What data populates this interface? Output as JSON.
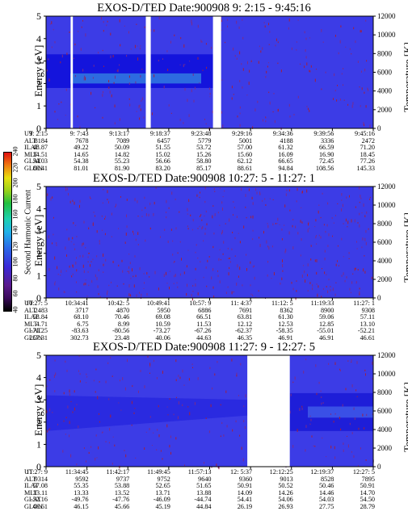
{
  "colorbar": {
    "label": "Second Harmonic Current",
    "ticks": [
      "40",
      "60",
      "80",
      "100",
      "120",
      "140",
      "160",
      "180",
      "200",
      "220",
      "240"
    ]
  },
  "chart_data": [
    {
      "type": "heatmap",
      "title": "EXOS-D/TED   Date:900908  9: 2:15 - 9:45:16",
      "ylabel": "Energy [eV]",
      "y2label": "Temperature [K]",
      "ylim": [
        0,
        5
      ],
      "y2lim": [
        0,
        12000
      ],
      "yticks": [
        "0",
        "1",
        "2",
        "3",
        "4",
        "5"
      ],
      "y2ticks": [
        "0",
        "2000",
        "4000",
        "6000",
        "8000",
        "10000",
        "12000"
      ],
      "data_gaps_index": [
        [
          0.51,
          0.535
        ],
        [
          0.075,
          0.082
        ],
        [
          0.305,
          0.32
        ]
      ],
      "band_energy_eV": [
        1.8,
        3.3
      ],
      "orbit_rows": [
        "UT",
        "ALT",
        "ILAT",
        "MLT",
        "GLAT",
        "GLON"
      ],
      "orbit_columns": [
        [
          "9: 2:15",
          "8184",
          "48.87",
          "14.51",
          "54.03",
          "80.41"
        ],
        [
          "9: 7:43",
          "7678",
          "49.22",
          "14.65",
          "54.38",
          "81.01"
        ],
        [
          "9:13:17",
          "7089",
          "50.09",
          "14.82",
          "55.23",
          "81.90"
        ],
        [
          "9:18:37",
          "6457",
          "51.55",
          "15.02",
          "56.66",
          "83.20"
        ],
        [
          "9:23:48",
          "5779",
          "53.72",
          "15.26",
          "58.80",
          "85.17"
        ],
        [
          "9:29:16",
          "5001",
          "57.00",
          "15.60",
          "62.12",
          "88.61"
        ],
        [
          "9:34:36",
          "4188",
          "61.32",
          "16.09",
          "66.65",
          "94.84"
        ],
        [
          "9:39:56",
          "3336",
          "66.59",
          "16.90",
          "72.45",
          "108.56"
        ],
        [
          "9:45:16",
          "2472",
          "71.20",
          "18.45",
          "77.26",
          "145.33"
        ]
      ]
    },
    {
      "type": "heatmap",
      "title": "EXOS-D/TED   Date:900908  10:27: 5 - 11:27: 1",
      "ylabel": "Energy [eV]",
      "y2label": "Temperature [K]",
      "ylim": [
        0,
        5
      ],
      "y2lim": [
        0,
        12000
      ],
      "yticks": [
        "0",
        "1",
        "2",
        "3",
        "4",
        "5"
      ],
      "y2ticks": [
        "0",
        "2000",
        "4000",
        "6000",
        "8000",
        "10000",
        "12000"
      ],
      "orbit_rows": [
        "UT",
        "ALT",
        "ILAT",
        "MLT",
        "GLAT",
        "GLON"
      ],
      "orbit_columns": [
        [
          "10:27: 5",
          "2483",
          "58.84",
          "4.71",
          "-71.25",
          "257.31"
        ],
        [
          "10:34:41",
          "3717",
          "68.10",
          "6.75",
          "-83.63",
          "302.73"
        ],
        [
          "10:42: 5",
          "4870",
          "70.46",
          "8.99",
          "-80.56",
          "23.48"
        ],
        [
          "10:49:41",
          "5950",
          "69.08",
          "10.59",
          "-73.27",
          "40.06"
        ],
        [
          "10:57: 9",
          "6886",
          "66.51",
          "11.53",
          "-67.26",
          "44.63"
        ],
        [
          "11: 4:37",
          "7691",
          "63.81",
          "12.12",
          "-62.37",
          "46.35"
        ],
        [
          "11:12: 5",
          "8362",
          "61.30",
          "12.53",
          "-58.35",
          "46.91"
        ],
        [
          "11:19:33",
          "8900",
          "59.06",
          "12.85",
          "-55.01",
          "46.91"
        ],
        [
          "11:27: 1",
          "9308",
          "57.11",
          "13.10",
          "-52.21",
          "46.61"
        ]
      ]
    },
    {
      "type": "heatmap",
      "title": "EXOS-D/TED   Date:900908  11:27: 9 - 12:27: 5",
      "ylabel": "Energy [eV]",
      "y2label": "Temperature [K]",
      "ylim": [
        0,
        5
      ],
      "y2lim": [
        0,
        12000
      ],
      "yticks": [
        "0",
        "1",
        "2",
        "3",
        "4",
        "5"
      ],
      "y2ticks": [
        "0",
        "2000",
        "4000",
        "6000",
        "8000",
        "10000",
        "12000"
      ],
      "data_gaps_index": [
        [
          0.615,
          0.745
        ]
      ],
      "band_energy_eV": [
        1.6,
        3.2
      ],
      "orbit_rows": [
        "UT",
        "ALT",
        "ILAT",
        "MLT",
        "GLAT",
        "GLON"
      ],
      "orbit_columns": [
        [
          "11:27: 9",
          "9314",
          "57.08",
          "13.11",
          "-52.16",
          "46.61"
        ],
        [
          "11:34:45",
          "9592",
          "55.35",
          "13.33",
          "-49.76",
          "46.15"
        ],
        [
          "11:42:17",
          "9737",
          "53.88",
          "13.52",
          "-47.76",
          "45.66"
        ],
        [
          "11:49:45",
          "9752",
          "52.65",
          "13.71",
          "-46.09",
          "45.19"
        ],
        [
          "11:57:13",
          "9640",
          "51.65",
          "13.88",
          "-44.74",
          "44.84"
        ],
        [
          "12: 5:37",
          "9360",
          "50.91",
          "14.09",
          "54.41",
          "26.19"
        ],
        [
          "12:12:25",
          "9013",
          "50.52",
          "14.26",
          "54.06",
          "26.93"
        ],
        [
          "12:19:37",
          "8528",
          "50.46",
          "14.46",
          "54.03",
          "27.75"
        ],
        [
          "12:27: 5",
          "7895",
          "50.91",
          "14.70",
          "54.50",
          "28.79"
        ]
      ]
    }
  ]
}
